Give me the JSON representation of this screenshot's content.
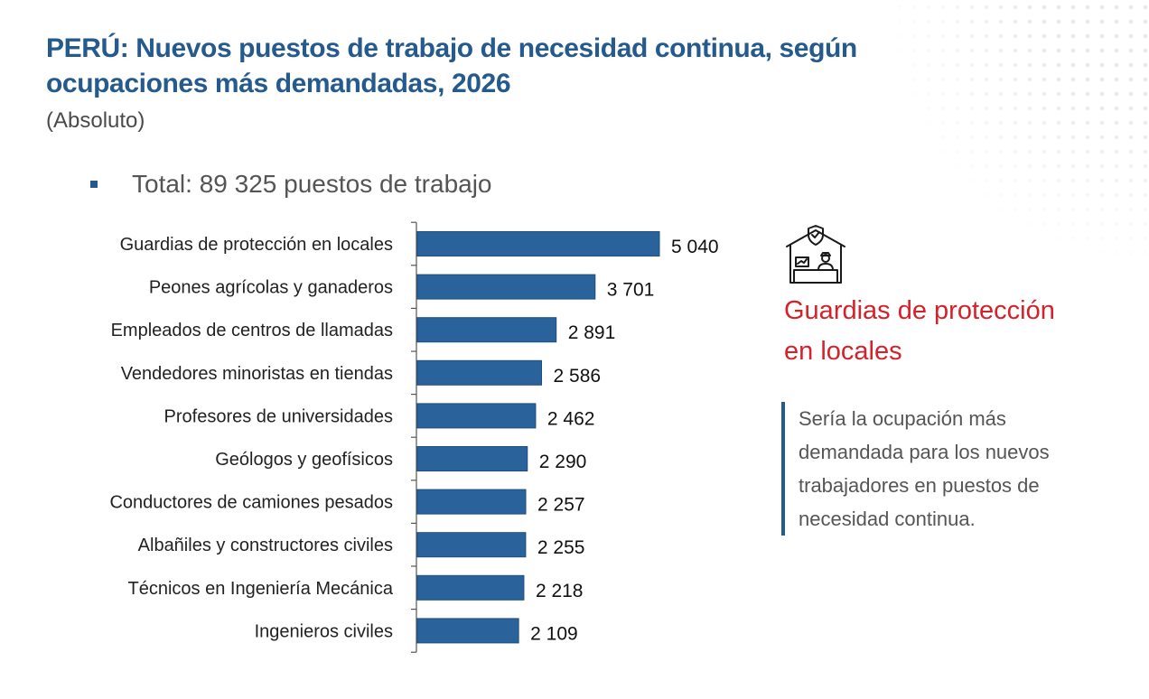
{
  "header": {
    "title": "PERÚ: Nuevos puestos de trabajo de necesidad continua, según ocupaciones más demandadas, 2026",
    "subtitle": "(Absoluto)",
    "total_text": "Total: 89 325 puestos de trabajo"
  },
  "colors": {
    "bar": "#2a629b",
    "title": "#245a8d",
    "highlight": "#d4212a",
    "accent": "#245a8d"
  },
  "side_panel": {
    "icon": "security-guard-booth-icon",
    "highlight_text": "Guardias de protección en locales",
    "note_text": "Sería la ocupación más demandada para los nuevos trabajadores en puestos de necesidad continua."
  },
  "chart_data": {
    "type": "bar",
    "orientation": "horizontal",
    "title": "PERÚ: Nuevos puestos de trabajo de necesidad continua, según ocupaciones más demandadas, 2026",
    "categories": [
      "Guardias de protección en locales",
      "Peones agrícolas y ganaderos",
      "Empleados de centros de llamadas",
      "Vendedores minoristas en tiendas",
      "Profesores de universidades",
      "Geólogos y geofísicos",
      "Conductores de camiones pesados",
      "Albañiles y constructores civiles",
      "Técnicos en Ingeniería Mecánica",
      "Ingenieros civiles"
    ],
    "values": [
      5040,
      3701,
      2891,
      2586,
      2462,
      2290,
      2257,
      2255,
      2218,
      2109
    ],
    "value_labels": [
      "5 040",
      "3 701",
      "2 891",
      "2 586",
      "2 462",
      "2 290",
      "2 257",
      "2 255",
      "2 218",
      "2 109"
    ],
    "xlim": [
      0,
      5040
    ],
    "grid": false,
    "legend": "none"
  }
}
